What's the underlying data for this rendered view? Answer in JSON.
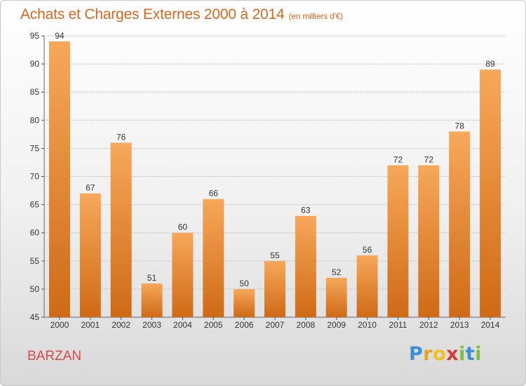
{
  "header": {
    "title": "Achats et Charges Externes 2000 à 2014",
    "subtitle": "(en milliers d'€)"
  },
  "footer": {
    "town": "BARZAN",
    "logo_letters": [
      "P",
      "r",
      "o",
      "x",
      "i",
      "t",
      "i"
    ]
  },
  "colors": {
    "bar_light": "#f7a85a",
    "bar_dark": "#cf6a16",
    "title": "#d2691e",
    "town": "#d94a4a"
  },
  "chart_data": {
    "type": "bar",
    "title": "Achats et Charges Externes 2000 à 2014",
    "subtitle": "(en milliers d'€)",
    "categories": [
      "2000",
      "2001",
      "2002",
      "2003",
      "2004",
      "2005",
      "2006",
      "2007",
      "2008",
      "2009",
      "2010",
      "2011",
      "2012",
      "2013",
      "2014"
    ],
    "values": [
      94,
      67,
      76,
      51,
      60,
      66,
      50,
      55,
      63,
      52,
      56,
      72,
      72,
      78,
      89
    ],
    "ylim": [
      45,
      95
    ],
    "yticks": [
      45,
      50,
      55,
      60,
      65,
      70,
      75,
      80,
      85,
      90,
      95
    ],
    "grid": true,
    "xlabel": "",
    "ylabel": ""
  }
}
